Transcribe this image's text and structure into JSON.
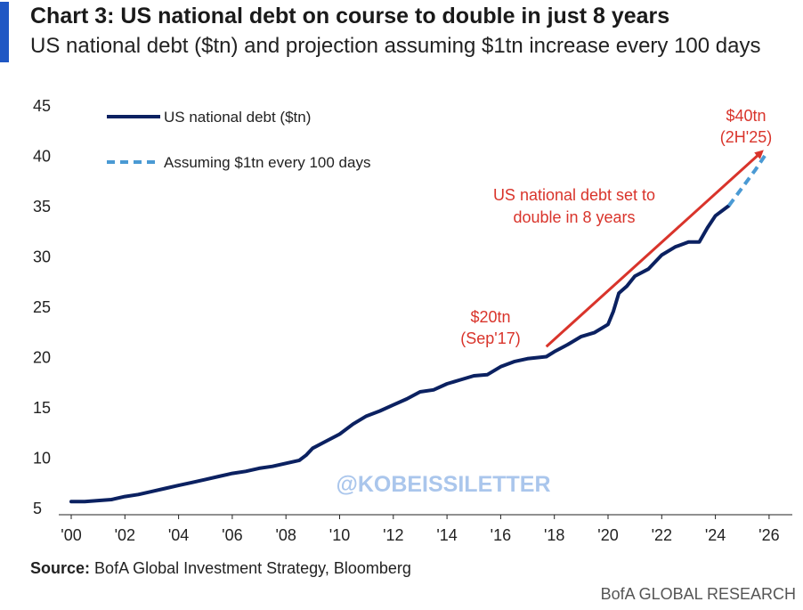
{
  "header": {
    "title": "Chart 3: US national debt on course to double in just 8 years",
    "subtitle": "US national debt ($tn) and projection assuming $1tn increase every 100 days"
  },
  "footer": {
    "source_label": "Source:",
    "source_text": "BofA Global Investment Strategy, Bloomberg",
    "brand": "BofA GLOBAL RESEARCH"
  },
  "watermark": "@KOBEISSILETTER",
  "colors": {
    "accent": "#1f57c4",
    "actual": "#0b2161",
    "projection": "#4a9ad4",
    "annotation": "#d9342b",
    "watermark": "#aac6ec"
  },
  "chart_data": {
    "type": "line",
    "x_range": [
      2000,
      2027.5
    ],
    "ylim": [
      5,
      45
    ],
    "yticks": [
      5,
      10,
      15,
      20,
      25,
      30,
      35,
      40,
      45
    ],
    "xticks": [
      2000,
      2002,
      2004,
      2006,
      2008,
      2010,
      2012,
      2014,
      2016,
      2018,
      2020,
      2022,
      2024,
      2026
    ],
    "xtick_labels": [
      "'00",
      "'02",
      "'04",
      "'06",
      "'08",
      "'10",
      "'12",
      "'14",
      "'16",
      "'18",
      "'20",
      "'22",
      "'24",
      "'26"
    ],
    "grid": false,
    "legend_position": "top-left",
    "series": [
      {
        "name": "US national debt ($tn)",
        "style": "solid",
        "x": [
          2000.0,
          2000.5,
          2001.0,
          2001.5,
          2002.0,
          2002.5,
          2003.0,
          2003.5,
          2004.0,
          2004.5,
          2005.0,
          2005.5,
          2006.0,
          2006.5,
          2007.0,
          2007.5,
          2008.0,
          2008.5,
          2008.75,
          2009.0,
          2009.5,
          2010.0,
          2010.5,
          2011.0,
          2011.5,
          2012.0,
          2012.5,
          2013.0,
          2013.5,
          2014.0,
          2014.5,
          2015.0,
          2015.5,
          2016.0,
          2016.5,
          2017.0,
          2017.7,
          2018.0,
          2018.5,
          2019.0,
          2019.5,
          2020.0,
          2020.2,
          2020.4,
          2020.7,
          2021.0,
          2021.5,
          2022.0,
          2022.5,
          2023.0,
          2023.4,
          2023.7,
          2024.0,
          2024.5
        ],
        "values": [
          5.6,
          5.6,
          5.7,
          5.8,
          6.1,
          6.3,
          6.6,
          6.9,
          7.2,
          7.5,
          7.8,
          8.1,
          8.4,
          8.6,
          8.9,
          9.1,
          9.4,
          9.7,
          10.2,
          10.9,
          11.6,
          12.3,
          13.3,
          14.1,
          14.6,
          15.2,
          15.8,
          16.5,
          16.7,
          17.3,
          17.7,
          18.1,
          18.2,
          19.0,
          19.5,
          19.8,
          20.0,
          20.5,
          21.2,
          22.0,
          22.4,
          23.2,
          24.5,
          26.3,
          27.0,
          28.0,
          28.7,
          30.1,
          30.9,
          31.4,
          31.4,
          32.8,
          34.0,
          35.0
        ]
      },
      {
        "name": "Assuming $1tn every 100 days",
        "style": "dashed",
        "x": [
          2024.5,
          2025.0,
          2025.5,
          2025.85
        ],
        "values": [
          35.0,
          36.8,
          38.6,
          40.0
        ]
      }
    ],
    "annotations": [
      {
        "text_lines": [
          "$20tn",
          "(Sep'17)"
        ],
        "x": 2017.7,
        "y": 20
      },
      {
        "text_lines": [
          "$40tn",
          "(2H'25)"
        ],
        "x": 2025.85,
        "y": 40
      },
      {
        "text_lines": [
          "US national debt set to",
          "double in 8 years"
        ]
      }
    ],
    "arrow": {
      "from": [
        2017.7,
        21.0
      ],
      "to": [
        2025.7,
        40.3
      ]
    }
  }
}
